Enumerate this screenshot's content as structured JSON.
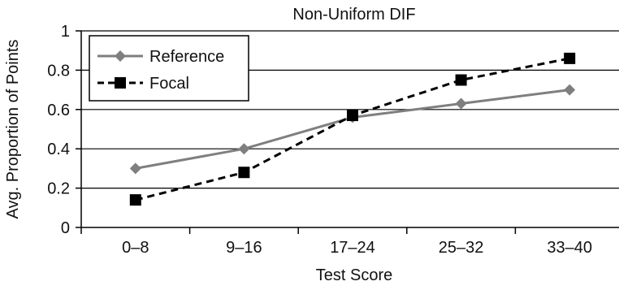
{
  "chart_data": {
    "type": "line",
    "title": "Non-Uniform DIF",
    "xlabel": "Test Score",
    "ylabel": "Avg. Proportion of Points",
    "categories": [
      "0–8",
      "9–16",
      "17–24",
      "25–32",
      "33–40"
    ],
    "ylim": [
      0,
      1
    ],
    "yticks": [
      "0",
      "0.2",
      "0.4",
      "0.6",
      "0.8",
      "1"
    ],
    "ytick_values": [
      0,
      0.2,
      0.4,
      0.6,
      0.8,
      1.0
    ],
    "grid": "horizontal",
    "legend_position": "top-left",
    "series": [
      {
        "name": "Reference",
        "values": [
          0.3,
          0.4,
          0.56,
          0.63,
          0.7
        ],
        "color": "#7f7f7f",
        "marker": "diamond",
        "line_style": "solid"
      },
      {
        "name": "Focal",
        "values": [
          0.14,
          0.28,
          0.57,
          0.75,
          0.86
        ],
        "color": "#000000",
        "marker": "square",
        "line_style": "dashed"
      }
    ]
  }
}
